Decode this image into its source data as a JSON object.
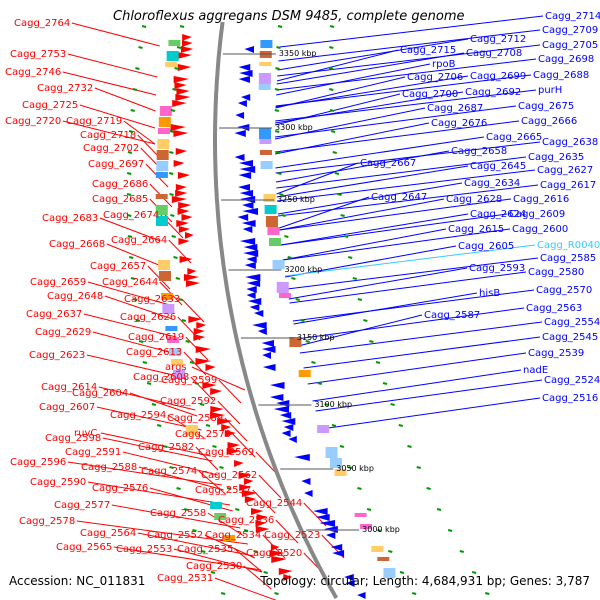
{
  "title": "Chloroflexus aggregans DSM 9485, complete genome",
  "accession_text": "Accession: NC_011831",
  "summary_text": "Topology: circular; Length: 4,684,931 bp; Genes: 3,787",
  "colors": {
    "forward": "#ff0000",
    "reverse": "#0000ff",
    "rna": "#33ccff",
    "backbone": "#888888",
    "tick": "#009900"
  },
  "kbp_ticks": [
    "3350 kbp",
    "3300 kbp",
    "3250 kbp",
    "3200 kbp",
    "3150 kbp",
    "3100 kbp",
    "3050 kbp",
    "3000 kbp"
  ],
  "left_labels": [
    "Cagg_2764",
    "Cagg_2753",
    "Cagg_2746",
    "Cagg_2732",
    "Cagg_2725",
    "Cagg_2720",
    "Cagg_2719",
    "Cagg_2718",
    "Cagg_2702",
    "Cagg_2697",
    "Cagg_2686",
    "Cagg_2685",
    "Cagg_2683",
    "Cagg_2674",
    "Cagg_2668",
    "Cagg_2664",
    "Cagg_2657",
    "Cagg_2659",
    "Cagg_2644",
    "Cagg_2648",
    "Cagg_2633",
    "Cagg_2637",
    "Cagg_2626",
    "Cagg_2629",
    "Cagg_2619",
    "Cagg_2623",
    "Cagg_2613",
    "args",
    "Cagg_2608",
    "Cagg_2614",
    "Cagg_2599",
    "Cagg_2604",
    "Cagg_2607",
    "Cagg_2592",
    "Cagg_2594",
    "ruvC",
    "Cagg_2589",
    "Cagg_2598",
    "Cagg_2579",
    "Cagg_2591",
    "Cagg_2582",
    "Cagg_2596",
    "Cagg_2588",
    "Cagg_2569",
    "Cagg_2574",
    "Cagg_2590",
    "Cagg_2576",
    "Cagg_2562",
    "Cagg_2577",
    "Cagg_2557",
    "Cagg_2578",
    "Cagg_2558",
    "Cagg_2544",
    "Cagg_2536",
    "Cagg_2564",
    "Cagg_2552",
    "Cagg_2534",
    "Cagg_2523",
    "Cagg_2565",
    "Cagg_2553",
    "Cagg_2535",
    "Cagg_2520",
    "Cagg_2530",
    "Cagg_2531"
  ],
  "right_labels": [
    "Cagg_2714",
    "Cagg_2709",
    "Cagg_2715",
    "Cagg_2712",
    "Cagg_2705",
    "Cagg_2708",
    "rpoB",
    "Cagg_2698",
    "Cagg_2706",
    "Cagg_2699",
    "Cagg_2688",
    "Cagg_2700",
    "Cagg_2692",
    "purH",
    "Cagg_2687",
    "Cagg_2675",
    "Cagg_2676",
    "Cagg_2666",
    "Cagg_2665",
    "Cagg_2638",
    "Cagg_2658",
    "Cagg_2635",
    "Cagg_2667",
    "Cagg_2645",
    "Cagg_2627",
    "Cagg_2634",
    "Cagg_2617",
    "Cagg_2647",
    "Cagg_2628",
    "Cagg_2616",
    "Cagg_2624",
    "Cagg_2609",
    "Cagg_2615",
    "Cagg_2600",
    "Cagg_2605",
    "Cagg_R0040",
    "Cagg_2585",
    "Cagg_2593",
    "Cagg_2580",
    "hisB",
    "Cagg_2570",
    "Cagg_2587",
    "Cagg_2563",
    "Cagg_2554",
    "Cagg_2545",
    "Cagg_2539",
    "nadE",
    "Cagg_2524",
    "Cagg_2516"
  ]
}
